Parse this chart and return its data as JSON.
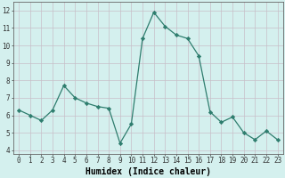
{
  "x": [
    0,
    1,
    2,
    3,
    4,
    5,
    6,
    7,
    8,
    9,
    10,
    11,
    12,
    13,
    14,
    15,
    16,
    17,
    18,
    19,
    20,
    21,
    22,
    23
  ],
  "y": [
    6.3,
    6.0,
    5.7,
    6.3,
    7.7,
    7.0,
    6.7,
    6.5,
    6.4,
    4.4,
    5.5,
    10.4,
    11.9,
    11.1,
    10.6,
    10.4,
    9.4,
    6.2,
    5.6,
    5.9,
    5.0,
    4.6,
    5.1,
    4.6
  ],
  "line_color": "#2e7d6e",
  "marker": "D",
  "marker_size": 2.2,
  "bg_color": "#d4f0ee",
  "grid_color": "#c8bec8",
  "xlabel": "Humidex (Indice chaleur)",
  "ylim": [
    3.8,
    12.5
  ],
  "xlim": [
    -0.5,
    23.5
  ],
  "yticks": [
    4,
    5,
    6,
    7,
    8,
    9,
    10,
    11,
    12
  ],
  "xticks": [
    0,
    1,
    2,
    3,
    4,
    5,
    6,
    7,
    8,
    9,
    10,
    11,
    12,
    13,
    14,
    15,
    16,
    17,
    18,
    19,
    20,
    21,
    22,
    23
  ],
  "tick_fontsize": 5.5,
  "xlabel_fontsize": 7.0,
  "linewidth": 0.9
}
